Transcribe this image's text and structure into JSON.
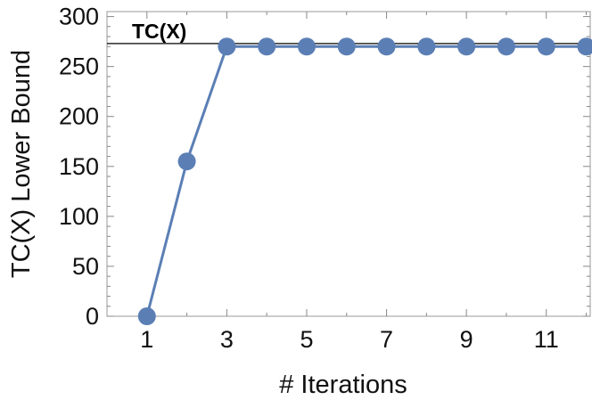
{
  "chart_data": {
    "type": "line",
    "xlabel": "# Iterations",
    "ylabel": "TC(X) Lower Bound",
    "xlim": [
      0,
      12.1
    ],
    "ylim": [
      0,
      305
    ],
    "x_ticks": [
      1,
      3,
      5,
      7,
      9,
      11
    ],
    "y_ticks": [
      0,
      50,
      100,
      150,
      200,
      250,
      300
    ],
    "grid": false,
    "series": [
      {
        "color": "#5b7fb5",
        "marker": "circle",
        "x": [
          1,
          2,
          3,
          4,
          5,
          6,
          7,
          8,
          9,
          10,
          11,
          12
        ],
        "y": [
          0,
          155,
          270,
          270,
          270,
          270,
          270,
          270,
          270,
          270,
          270,
          270
        ]
      }
    ],
    "reference_line": {
      "label": "TC(X)",
      "value": 273,
      "color": "#000000"
    }
  }
}
